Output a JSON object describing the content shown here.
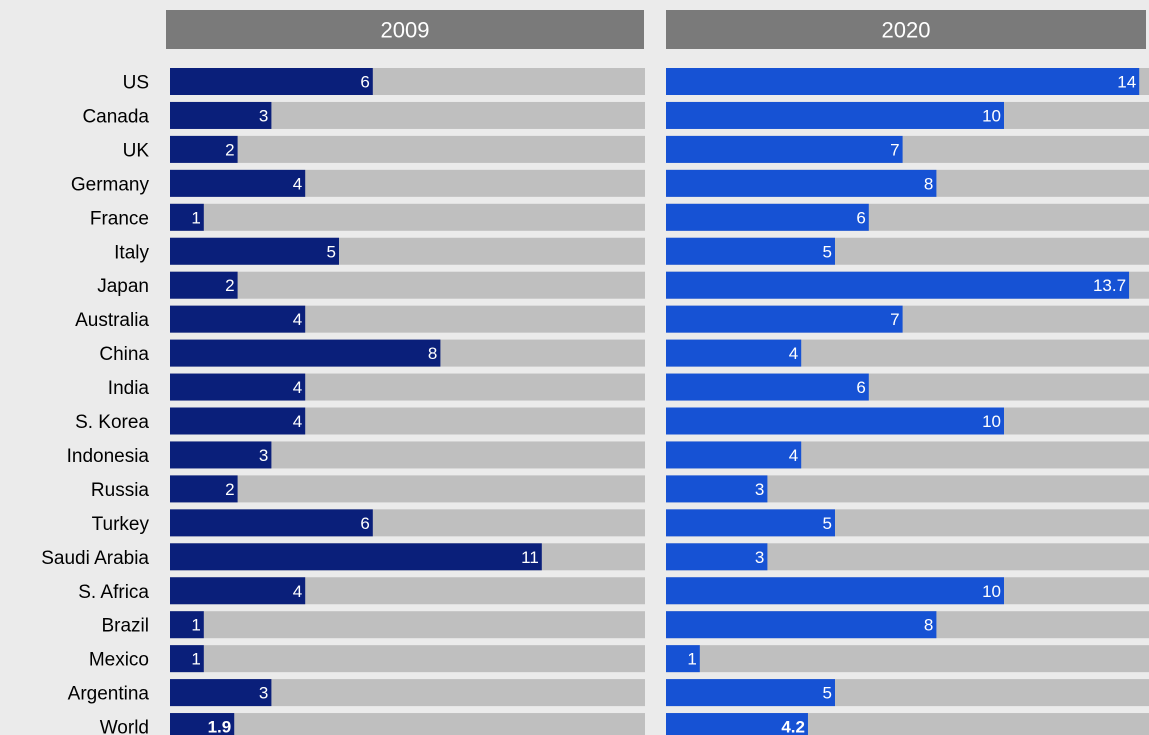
{
  "chart_data": {
    "type": "bar",
    "orientation": "horizontal",
    "categories": [
      "US",
      "Canada",
      "UK",
      "Germany",
      "France",
      "Italy",
      "Japan",
      "Australia",
      "China",
      "India",
      "S. Korea",
      "Indonesia",
      "Russia",
      "Turkey",
      "Saudi Arabia",
      "S. Africa",
      "Brazil",
      "Mexico",
      "Argentina",
      "World"
    ],
    "panels": [
      {
        "title": "2009",
        "values": [
          6,
          3,
          2,
          4,
          1,
          5,
          2,
          4,
          8,
          4,
          4,
          3,
          2,
          6,
          11,
          4,
          1,
          1,
          3,
          1.9
        ],
        "labels": [
          "6",
          "3",
          "2",
          "4",
          "1",
          "5",
          "2",
          "4",
          "8",
          "4",
          "4",
          "3",
          "2",
          "6",
          "11",
          "4",
          "1",
          "1",
          "3",
          "1.9"
        ],
        "xlim": [
          0,
          14
        ],
        "bar_color": "#0a1f7a"
      },
      {
        "title": "2020",
        "values": [
          14,
          10,
          7,
          8,
          6,
          5,
          13.7,
          7,
          4,
          6,
          10,
          4,
          3,
          5,
          3,
          10,
          8,
          1,
          5,
          4.2
        ],
        "labels": [
          "14",
          "10",
          "7",
          "8",
          "6",
          "5",
          "13.7",
          "7",
          "4",
          "6",
          "10",
          "4",
          "3",
          "5",
          "3",
          "10",
          "8",
          "1",
          "5",
          "4.2"
        ],
        "xlim": [
          0,
          14
        ],
        "bar_color": "#1652d4"
      }
    ],
    "track_color": "#bfbfbf",
    "header_color": "#7a7a7a",
    "grid": false,
    "legend": "none"
  }
}
